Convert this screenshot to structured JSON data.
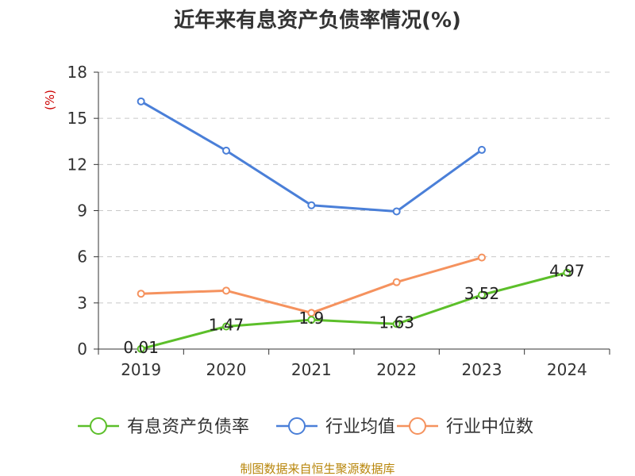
{
  "chart_data": {
    "type": "line",
    "title": "近年来有息资产负债率情况(%)",
    "ylabel": "(%)",
    "xlabel": "",
    "categories": [
      "2019",
      "2020",
      "2021",
      "2022",
      "2023",
      "2024"
    ],
    "ylim": [
      0,
      18
    ],
    "yticks": [
      0,
      3,
      6,
      9,
      12,
      15,
      18
    ],
    "grid": true,
    "legend_position": "bottom",
    "series": [
      {
        "name": "有息资产负债率",
        "color": "#5cbf2a",
        "values": [
          0.01,
          1.47,
          1.9,
          1.63,
          3.52,
          4.97
        ],
        "labels": [
          "0.01",
          "1.47",
          "1.9",
          "1.63",
          "3.52",
          "4.97"
        ]
      },
      {
        "name": "行业均值",
        "color": "#4a7fd8",
        "values": [
          16.1,
          12.9,
          9.35,
          8.95,
          12.95,
          null
        ]
      },
      {
        "name": "行业中位数",
        "color": "#f5925e",
        "values": [
          3.6,
          3.8,
          2.35,
          4.35,
          5.95,
          null
        ]
      }
    ],
    "source": "制图数据来自恒生聚源数据库"
  }
}
